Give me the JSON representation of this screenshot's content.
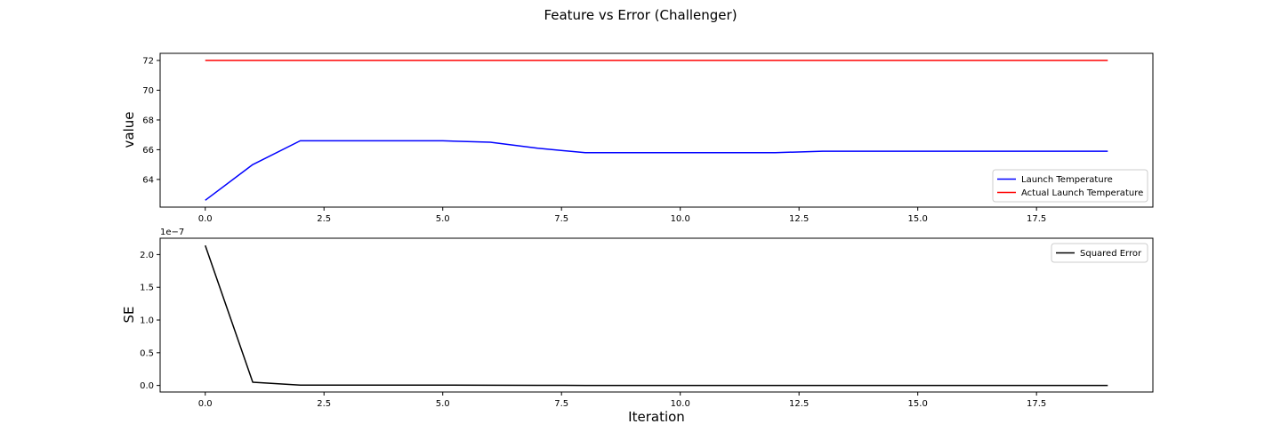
{
  "figure": {
    "title": "Feature vs Error (Challenger)"
  },
  "chart_data": [
    {
      "type": "line",
      "xlabel": "",
      "ylabel": "value",
      "xlim": [
        -0.95,
        19.95
      ],
      "ylim": [
        62.14,
        72.48
      ],
      "xticks": [
        0.0,
        2.5,
        5.0,
        7.5,
        10.0,
        12.5,
        15.0,
        17.5
      ],
      "xtick_labels": [
        "0.0",
        "2.5",
        "5.0",
        "7.5",
        "10.0",
        "12.5",
        "15.0",
        "17.5"
      ],
      "yticks": [
        64,
        66,
        68,
        70,
        72
      ],
      "ytick_labels": [
        "64",
        "66",
        "68",
        "70",
        "72"
      ],
      "grid": false,
      "legend": "lower-right",
      "x": [
        0,
        1,
        2,
        3,
        4,
        5,
        6,
        7,
        8,
        9,
        10,
        11,
        12,
        13,
        14,
        15,
        16,
        17,
        18,
        19
      ],
      "series": [
        {
          "name": "Launch Temperature",
          "color": "#0000ff",
          "values": [
            62.6,
            65.0,
            66.6,
            66.6,
            66.6,
            66.6,
            66.5,
            66.1,
            65.8,
            65.8,
            65.8,
            65.8,
            65.8,
            65.9,
            65.9,
            65.9,
            65.9,
            65.9,
            65.9,
            65.9
          ]
        },
        {
          "name": "Actual Launch Temperature",
          "color": "#ff0000",
          "values": [
            72,
            72,
            72,
            72,
            72,
            72,
            72,
            72,
            72,
            72,
            72,
            72,
            72,
            72,
            72,
            72,
            72,
            72,
            72,
            72
          ]
        }
      ]
    },
    {
      "type": "line",
      "xlabel": "Iteration",
      "ylabel": "SE",
      "offset_label": "1e−7",
      "xlim": [
        -0.95,
        19.95
      ],
      "ylim": [
        -0.1,
        2.25
      ],
      "xticks": [
        0.0,
        2.5,
        5.0,
        7.5,
        10.0,
        12.5,
        15.0,
        17.5
      ],
      "xtick_labels": [
        "0.0",
        "2.5",
        "5.0",
        "7.5",
        "10.0",
        "12.5",
        "15.0",
        "17.5"
      ],
      "yticks": [
        0.0,
        0.5,
        1.0,
        1.5,
        2.0
      ],
      "ytick_labels": [
        "0.0",
        "0.5",
        "1.0",
        "1.5",
        "2.0"
      ],
      "grid": false,
      "legend": "upper-right",
      "x": [
        0,
        1,
        2,
        3,
        4,
        5,
        6,
        7,
        8,
        9,
        10,
        11,
        12,
        13,
        14,
        15,
        16,
        17,
        18,
        19
      ],
      "series": [
        {
          "name": "Squared Error",
          "color": "#000000",
          "values": [
            2.14,
            0.05,
            0.005,
            0.005,
            0.005,
            0.005,
            0.004,
            0.002,
            0.001,
            0.001,
            0.001,
            0.001,
            0.001,
            0.001,
            0.001,
            0.001,
            0.001,
            0.001,
            0.001,
            0.001
          ]
        }
      ]
    }
  ]
}
